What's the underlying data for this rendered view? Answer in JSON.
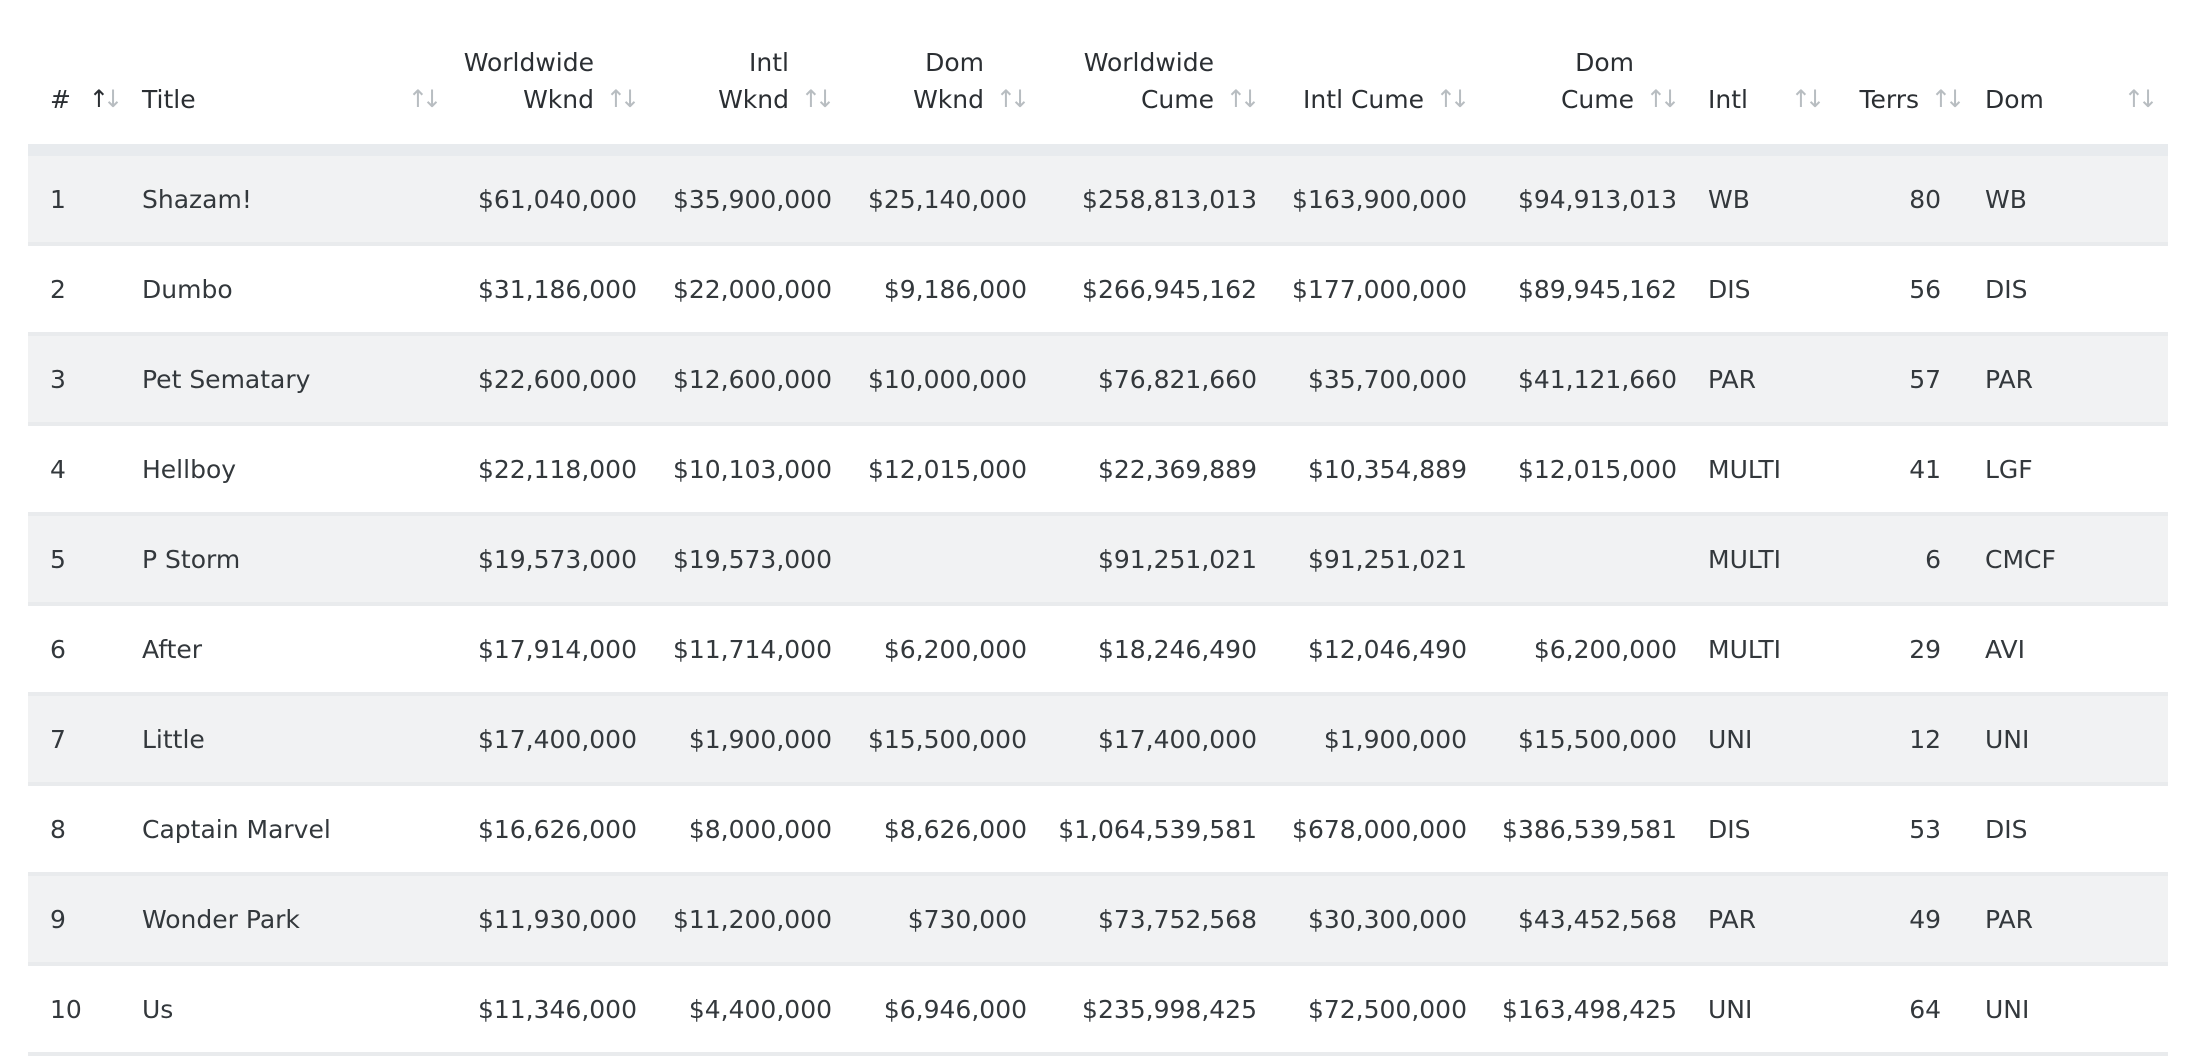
{
  "columns": [
    {
      "key": "rank",
      "label_line1": "",
      "label_line2": "#"
    },
    {
      "key": "title",
      "label_line1": "",
      "label_line2": "Title"
    },
    {
      "key": "ww_wknd",
      "label_line1": "Worldwide",
      "label_line2": "Wknd"
    },
    {
      "key": "intl_wknd",
      "label_line1": "Intl",
      "label_line2": "Wknd"
    },
    {
      "key": "dom_wknd",
      "label_line1": "Dom",
      "label_line2": "Wknd"
    },
    {
      "key": "ww_cume",
      "label_line1": "Worldwide",
      "label_line2": "Cume"
    },
    {
      "key": "intl_cume",
      "label_line1": "",
      "label_line2": "Intl Cume"
    },
    {
      "key": "dom_cume",
      "label_line1": "Dom",
      "label_line2": "Cume"
    },
    {
      "key": "intl",
      "label_line1": "",
      "label_line2": "Intl"
    },
    {
      "key": "terrs",
      "label_line1": "",
      "label_line2": "Terrs"
    },
    {
      "key": "dom",
      "label_line1": "",
      "label_line2": "Dom"
    }
  ],
  "sort_icon": "sort-up-down-icon",
  "rows": [
    {
      "rank": "1",
      "title": "Shazam!",
      "ww_wknd": "$61,040,000",
      "intl_wknd": "$35,900,000",
      "dom_wknd": "$25,140,000",
      "ww_cume": "$258,813,013",
      "intl_cume": "$163,900,000",
      "dom_cume": "$94,913,013",
      "intl": "WB",
      "terrs": "80",
      "dom": "WB"
    },
    {
      "rank": "2",
      "title": "Dumbo",
      "ww_wknd": "$31,186,000",
      "intl_wknd": "$22,000,000",
      "dom_wknd": "$9,186,000",
      "ww_cume": "$266,945,162",
      "intl_cume": "$177,000,000",
      "dom_cume": "$89,945,162",
      "intl": "DIS",
      "terrs": "56",
      "dom": "DIS"
    },
    {
      "rank": "3",
      "title": "Pet Sematary",
      "ww_wknd": "$22,600,000",
      "intl_wknd": "$12,600,000",
      "dom_wknd": "$10,000,000",
      "ww_cume": "$76,821,660",
      "intl_cume": "$35,700,000",
      "dom_cume": "$41,121,660",
      "intl": "PAR",
      "terrs": "57",
      "dom": "PAR"
    },
    {
      "rank": "4",
      "title": "Hellboy",
      "ww_wknd": "$22,118,000",
      "intl_wknd": "$10,103,000",
      "dom_wknd": "$12,015,000",
      "ww_cume": "$22,369,889",
      "intl_cume": "$10,354,889",
      "dom_cume": "$12,015,000",
      "intl": "MULTI",
      "terrs": "41",
      "dom": "LGF"
    },
    {
      "rank": "5",
      "title": "P Storm",
      "ww_wknd": "$19,573,000",
      "intl_wknd": "$19,573,000",
      "dom_wknd": "",
      "ww_cume": "$91,251,021",
      "intl_cume": "$91,251,021",
      "dom_cume": "",
      "intl": "MULTI",
      "terrs": "6",
      "dom": "CMCF"
    },
    {
      "rank": "6",
      "title": "After",
      "ww_wknd": "$17,914,000",
      "intl_wknd": "$11,714,000",
      "dom_wknd": "$6,200,000",
      "ww_cume": "$18,246,490",
      "intl_cume": "$12,046,490",
      "dom_cume": "$6,200,000",
      "intl": "MULTI",
      "terrs": "29",
      "dom": "AVI"
    },
    {
      "rank": "7",
      "title": "Little",
      "ww_wknd": "$17,400,000",
      "intl_wknd": "$1,900,000",
      "dom_wknd": "$15,500,000",
      "ww_cume": "$17,400,000",
      "intl_cume": "$1,900,000",
      "dom_cume": "$15,500,000",
      "intl": "UNI",
      "terrs": "12",
      "dom": "UNI"
    },
    {
      "rank": "8",
      "title": "Captain Marvel",
      "ww_wknd": "$16,626,000",
      "intl_wknd": "$8,000,000",
      "dom_wknd": "$8,626,000",
      "ww_cume": "$1,064,539,581",
      "intl_cume": "$678,000,000",
      "dom_cume": "$386,539,581",
      "intl": "DIS",
      "terrs": "53",
      "dom": "DIS"
    },
    {
      "rank": "9",
      "title": "Wonder Park",
      "ww_wknd": "$11,930,000",
      "intl_wknd": "$11,200,000",
      "dom_wknd": "$730,000",
      "ww_cume": "$73,752,568",
      "intl_cume": "$30,300,000",
      "dom_cume": "$43,452,568",
      "intl": "PAR",
      "terrs": "49",
      "dom": "PAR"
    },
    {
      "rank": "10",
      "title": "Us",
      "ww_wknd": "$11,346,000",
      "intl_wknd": "$4,400,000",
      "dom_wknd": "$6,946,000",
      "ww_cume": "$235,998,425",
      "intl_cume": "$72,500,000",
      "dom_cume": "$163,498,425",
      "intl": "UNI",
      "terrs": "64",
      "dom": "UNI"
    }
  ]
}
